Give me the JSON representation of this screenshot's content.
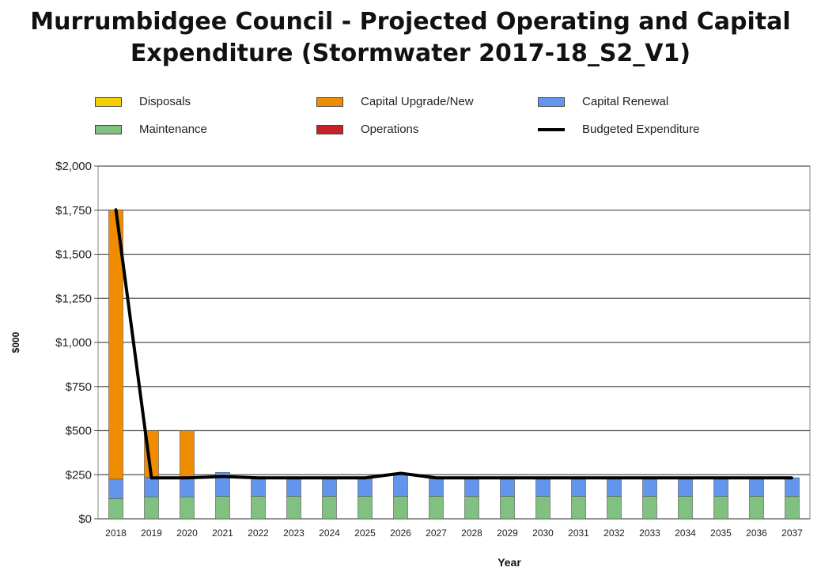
{
  "title": {
    "line1": "Murrumbidgee Council - Projected Operating and Capital",
    "line2": "Expenditure (Stormwater 2017-18_S2_V1)"
  },
  "legend": [
    {
      "label": "Disposals",
      "color": "#f5d000",
      "kind": "box"
    },
    {
      "label": "Capital Upgrade/New",
      "color": "#f08c00",
      "kind": "box"
    },
    {
      "label": "Capital Renewal",
      "color": "#6495ed",
      "kind": "box"
    },
    {
      "label": "Maintenance",
      "color": "#80c080",
      "kind": "box"
    },
    {
      "label": "Operations",
      "color": "#c8202a",
      "kind": "box"
    },
    {
      "label": "Budgeted Expenditure",
      "color": "#000000",
      "kind": "line"
    }
  ],
  "chart_data": {
    "type": "bar",
    "stacked": true,
    "categories": [
      "2018",
      "2019",
      "2020",
      "2021",
      "2022",
      "2023",
      "2024",
      "2025",
      "2026",
      "2027",
      "2028",
      "2029",
      "2030",
      "2031",
      "2032",
      "2033",
      "2034",
      "2035",
      "2036",
      "2037"
    ],
    "series": [
      {
        "name": "Maintenance",
        "color": "#80c080",
        "values": [
          115,
          125,
          125,
          128,
          128,
          128,
          128,
          128,
          128,
          128,
          128,
          128,
          128,
          128,
          128,
          128,
          128,
          128,
          128,
          128
        ]
      },
      {
        "name": "Operations",
        "color": "#c8202a",
        "values": [
          0,
          0,
          0,
          0,
          0,
          0,
          0,
          0,
          0,
          0,
          0,
          0,
          0,
          0,
          0,
          0,
          0,
          0,
          0,
          0
        ]
      },
      {
        "name": "Capital Renewal",
        "color": "#6495ed",
        "values": [
          110,
          110,
          110,
          135,
          100,
          100,
          100,
          100,
          130,
          100,
          100,
          100,
          100,
          100,
          100,
          100,
          100,
          100,
          100,
          105
        ]
      },
      {
        "name": "Capital Upgrade/New",
        "color": "#f08c00",
        "values": [
          1525,
          265,
          265,
          0,
          0,
          0,
          0,
          0,
          0,
          0,
          0,
          0,
          0,
          0,
          0,
          0,
          0,
          0,
          0,
          0
        ]
      },
      {
        "name": "Disposals",
        "color": "#f5d000",
        "values": [
          0,
          0,
          0,
          0,
          0,
          0,
          0,
          0,
          0,
          0,
          0,
          0,
          0,
          0,
          0,
          0,
          0,
          0,
          0,
          0
        ]
      }
    ],
    "line_series": {
      "name": "Budgeted Expenditure",
      "color": "#000000",
      "values": [
        1755,
        232,
        232,
        240,
        232,
        232,
        232,
        232,
        258,
        232,
        232,
        232,
        232,
        232,
        232,
        232,
        232,
        232,
        232,
        232
      ]
    },
    "ylim": [
      0,
      2000
    ],
    "yticks": [
      0,
      250,
      500,
      750,
      1000,
      1250,
      1500,
      1750,
      2000
    ],
    "ytick_labels": [
      "$0",
      "$250",
      "$500",
      "$750",
      "$1,000",
      "$1,250",
      "$1,500",
      "$1,750",
      "$2,000"
    ],
    "xlabel": "Year",
    "ylabel": "$000",
    "grid": true,
    "legend_position": "top"
  }
}
